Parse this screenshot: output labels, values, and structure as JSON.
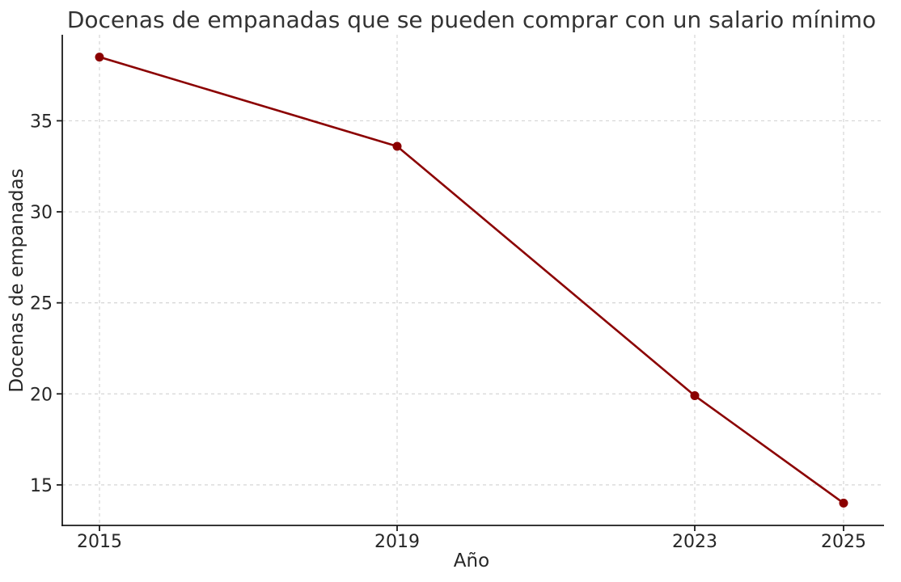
{
  "chart_data": {
    "type": "line",
    "title": "Docenas de empanadas que se pueden comprar con un salario mínimo",
    "xlabel": "Año",
    "ylabel": "Docenas de empanadas",
    "x": [
      2015,
      2019,
      2023,
      2025
    ],
    "values": [
      38.5,
      33.6,
      19.9,
      14.0
    ],
    "series_name": "Docenas de empanadas",
    "xlim": [
      2014.5,
      2025.5
    ],
    "ylim": [
      12.775,
      39.725
    ],
    "xticks": {
      "positions": [
        2015,
        2019,
        2023,
        2025
      ],
      "labels": [
        "2015",
        "2019",
        "2023",
        "2025"
      ]
    },
    "yticks": {
      "positions": [
        15,
        20,
        25,
        30,
        35
      ],
      "labels": [
        "15",
        "20",
        "25",
        "30",
        "35"
      ]
    },
    "grid": true,
    "legend": false,
    "colors": {
      "line": "#8B0000",
      "marker": "#8B0000",
      "grid": "#d5d5d5",
      "axis": "#1a1a1a",
      "tick_text": "#262626",
      "title_text": "#333333",
      "background": "#ffffff"
    }
  }
}
